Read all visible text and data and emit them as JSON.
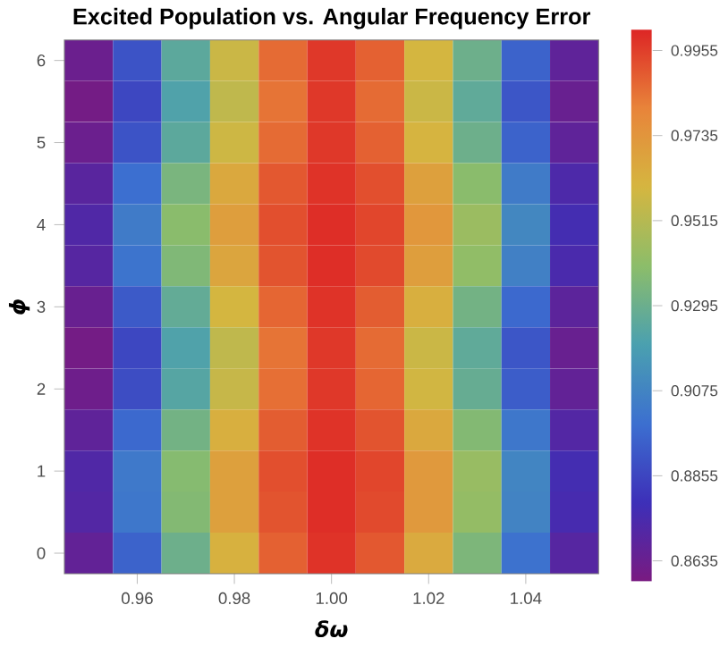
{
  "chart_data": {
    "type": "heatmap",
    "title": "Excited Population vs. Angular Frequency Error",
    "xlabel": "δω",
    "ylabel": "ϕ",
    "categories": [
      null,
      "0.96",
      null,
      "0.98",
      null,
      "1.00",
      null,
      "1.02",
      null,
      "1.04",
      null
    ],
    "y_categories": [
      "6",
      null,
      "5",
      null,
      "4",
      null,
      "3",
      null,
      "2",
      null,
      "1",
      null,
      "0"
    ],
    "cells": [
      [
        0.863,
        0.89,
        0.925,
        0.957,
        0.986,
        0.997,
        0.988,
        0.96,
        0.93,
        0.895,
        0.867
      ],
      [
        0.86,
        0.886,
        0.921,
        0.954,
        0.984,
        0.997,
        0.986,
        0.957,
        0.926,
        0.891,
        0.864
      ],
      [
        0.863,
        0.89,
        0.925,
        0.958,
        0.986,
        0.997,
        0.988,
        0.961,
        0.93,
        0.895,
        0.867
      ],
      [
        0.869,
        0.899,
        0.934,
        0.966,
        0.99,
        0.998,
        0.992,
        0.969,
        0.939,
        0.904,
        0.873
      ],
      [
        0.872,
        0.904,
        0.939,
        0.97,
        0.992,
        0.999,
        0.994,
        0.973,
        0.944,
        0.909,
        0.876
      ],
      [
        0.87,
        0.901,
        0.936,
        0.967,
        0.991,
        0.999,
        0.993,
        0.97,
        0.941,
        0.906,
        0.874
      ],
      [
        0.864,
        0.892,
        0.927,
        0.96,
        0.987,
        0.998,
        0.989,
        0.963,
        0.932,
        0.897,
        0.868
      ],
      [
        0.86,
        0.886,
        0.921,
        0.954,
        0.984,
        0.997,
        0.986,
        0.957,
        0.926,
        0.891,
        0.864
      ],
      [
        0.862,
        0.888,
        0.923,
        0.956,
        0.985,
        0.997,
        0.987,
        0.959,
        0.928,
        0.893,
        0.866
      ],
      [
        0.867,
        0.897,
        0.932,
        0.963,
        0.989,
        0.998,
        0.991,
        0.966,
        0.937,
        0.902,
        0.871
      ],
      [
        0.872,
        0.903,
        0.938,
        0.969,
        0.992,
        0.999,
        0.994,
        0.972,
        0.943,
        0.908,
        0.876
      ],
      [
        0.871,
        0.902,
        0.937,
        0.969,
        0.991,
        0.999,
        0.993,
        0.972,
        0.942,
        0.907,
        0.875
      ],
      [
        0.866,
        0.895,
        0.93,
        0.962,
        0.988,
        0.998,
        0.99,
        0.965,
        0.935,
        0.9,
        0.87
      ]
    ],
    "clim": [
      0.858,
      1.001
    ],
    "cticks": [
      0.8635,
      0.8855,
      0.9075,
      0.9295,
      0.9515,
      0.9735,
      0.9955
    ]
  }
}
